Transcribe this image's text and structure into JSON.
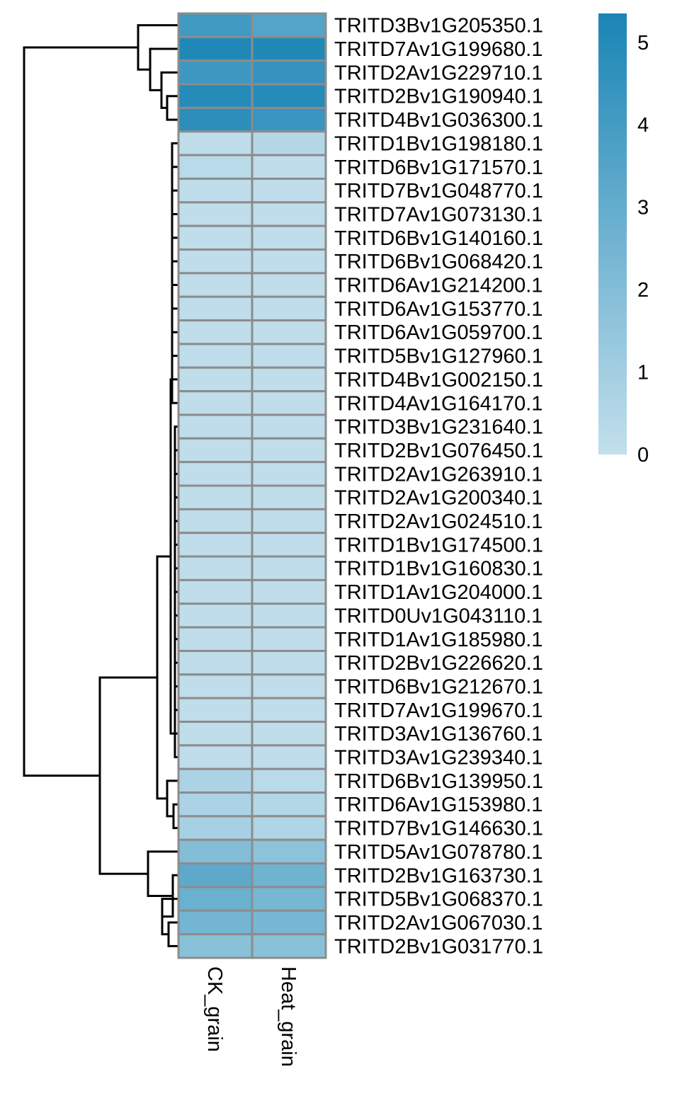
{
  "chart_data": {
    "type": "heatmap",
    "columns": [
      "CK_grain",
      "Heat_grain"
    ],
    "rows": [
      "TRITD3Bv1G205350.1",
      "TRITD7Av1G199680.1",
      "TRITD2Av1G229710.1",
      "TRITD2Bv1G190940.1",
      "TRITD4Bv1G036300.1",
      "TRITD1Bv1G198180.1",
      "TRITD6Bv1G171570.1",
      "TRITD7Bv1G048770.1",
      "TRITD7Av1G073130.1",
      "TRITD6Bv1G140160.1",
      "TRITD6Bv1G068420.1",
      "TRITD6Av1G214200.1",
      "TRITD6Av1G153770.1",
      "TRITD6Av1G059700.1",
      "TRITD5Bv1G127960.1",
      "TRITD4Bv1G002150.1",
      "TRITD4Av1G164170.1",
      "TRITD3Bv1G231640.1",
      "TRITD2Bv1G076450.1",
      "TRITD2Av1G263910.1",
      "TRITD2Av1G200340.1",
      "TRITD2Av1G024510.1",
      "TRITD1Bv1G174500.1",
      "TRITD1Bv1G160830.1",
      "TRITD1Av1G204000.1",
      "TRITD0Uv1G043110.1",
      "TRITD1Av1G185980.1",
      "TRITD2Bv1G226620.1",
      "TRITD6Bv1G212670.1",
      "TRITD7Av1G199670.1",
      "TRITD3Av1G136760.1",
      "TRITD3Av1G239340.1",
      "TRITD6Bv1G139950.1",
      "TRITD6Av1G153980.1",
      "TRITD7Bv1G146630.1",
      "TRITD5Av1G078780.1",
      "TRITD2Bv1G163730.1",
      "TRITD5Bv1G068370.1",
      "TRITD2Av1G067030.1",
      "TRITD2Bv1G031770.1"
    ],
    "values": [
      [
        4.1,
        3.5
      ],
      [
        5.2,
        5.2
      ],
      [
        4.2,
        4.5
      ],
      [
        5.0,
        5.0
      ],
      [
        4.8,
        4.4
      ],
      [
        0.1,
        0.4
      ],
      [
        0.3,
        0.1
      ],
      [
        0.1,
        0.1
      ],
      [
        0.1,
        0.1
      ],
      [
        0.1,
        0.1
      ],
      [
        0.1,
        0.1
      ],
      [
        0.1,
        0.1
      ],
      [
        0.1,
        0.1
      ],
      [
        0.1,
        0.1
      ],
      [
        0.1,
        0.1
      ],
      [
        0.1,
        0.1
      ],
      [
        0.1,
        0.1
      ],
      [
        0.1,
        0.1
      ],
      [
        0.1,
        0.1
      ],
      [
        0.1,
        0.1
      ],
      [
        0.1,
        0.1
      ],
      [
        0.1,
        0.1
      ],
      [
        0.1,
        0.1
      ],
      [
        0.1,
        0.1
      ],
      [
        0.1,
        0.1
      ],
      [
        0.1,
        0.1
      ],
      [
        0.1,
        0.1
      ],
      [
        0.1,
        0.1
      ],
      [
        0.1,
        0.1
      ],
      [
        0.1,
        0.1
      ],
      [
        0.1,
        0.1
      ],
      [
        0.1,
        0.1
      ],
      [
        0.7,
        0.3
      ],
      [
        0.7,
        0.5
      ],
      [
        0.9,
        0.6
      ],
      [
        2.0,
        1.7
      ],
      [
        3.2,
        2.6
      ],
      [
        2.8,
        2.4
      ],
      [
        2.5,
        2.4
      ],
      [
        1.8,
        1.8
      ]
    ],
    "color_scale": {
      "min": 0,
      "max": 5.35,
      "low_color": "#c2dfec",
      "high_color": "#1a85b5"
    },
    "legend": {
      "position": "top-right",
      "ticks": [
        0,
        1,
        2,
        3,
        4,
        5
      ]
    },
    "cell_border_color": "#8c8c8c",
    "row_dendrogram": true,
    "column_dendrogram": false
  }
}
